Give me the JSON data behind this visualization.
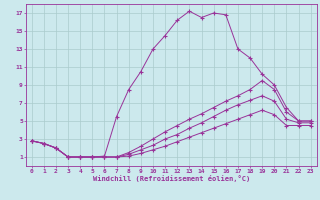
{
  "background_color": "#cce9ed",
  "grid_color": "#aacccc",
  "line_color": "#993399",
  "xlabel": "Windchill (Refroidissement éolien,°C)",
  "xlabel_color": "#993399",
  "tick_color": "#993399",
  "xlim": [
    -0.5,
    23.5
  ],
  "ylim": [
    0,
    18
  ],
  "xticks": [
    0,
    1,
    2,
    3,
    4,
    5,
    6,
    7,
    8,
    9,
    10,
    11,
    12,
    13,
    14,
    15,
    16,
    17,
    18,
    19,
    20,
    21,
    22,
    23
  ],
  "yticks": [
    1,
    3,
    5,
    7,
    9,
    11,
    13,
    15,
    17
  ],
  "line1_x": [
    0,
    1,
    2,
    3,
    4,
    5,
    6,
    7,
    8,
    9,
    10,
    11,
    12,
    13,
    14,
    15,
    16,
    17,
    18,
    19,
    20,
    21,
    22,
    23
  ],
  "line1_y": [
    2.8,
    2.5,
    2.0,
    1.0,
    1.0,
    1.0,
    1.1,
    5.5,
    8.5,
    10.5,
    13.0,
    14.5,
    16.2,
    17.2,
    16.5,
    17.0,
    16.8,
    13.0,
    12.0,
    10.2,
    9.0,
    6.5,
    5.0,
    5.0
  ],
  "line2_x": [
    0,
    1,
    2,
    3,
    4,
    5,
    6,
    7,
    8,
    9,
    10,
    11,
    12,
    13,
    14,
    15,
    16,
    17,
    18,
    19,
    20,
    21,
    22,
    23
  ],
  "line2_y": [
    2.8,
    2.5,
    2.0,
    1.0,
    1.0,
    1.0,
    1.0,
    1.0,
    1.5,
    2.2,
    3.0,
    3.8,
    4.5,
    5.2,
    5.8,
    6.5,
    7.2,
    7.8,
    8.5,
    9.5,
    8.5,
    6.0,
    5.0,
    5.0
  ],
  "line3_x": [
    0,
    1,
    2,
    3,
    4,
    5,
    6,
    7,
    8,
    9,
    10,
    11,
    12,
    13,
    14,
    15,
    16,
    17,
    18,
    19,
    20,
    21,
    22,
    23
  ],
  "line3_y": [
    2.8,
    2.5,
    2.0,
    1.0,
    1.0,
    1.0,
    1.0,
    1.0,
    1.3,
    1.8,
    2.3,
    3.0,
    3.5,
    4.2,
    4.8,
    5.5,
    6.2,
    6.8,
    7.3,
    7.8,
    7.2,
    5.2,
    4.8,
    4.8
  ],
  "line4_x": [
    0,
    1,
    2,
    3,
    4,
    5,
    6,
    7,
    8,
    9,
    10,
    11,
    12,
    13,
    14,
    15,
    16,
    17,
    18,
    19,
    20,
    21,
    22,
    23
  ],
  "line4_y": [
    2.8,
    2.5,
    2.0,
    1.0,
    1.0,
    1.0,
    1.0,
    1.0,
    1.1,
    1.4,
    1.8,
    2.2,
    2.7,
    3.2,
    3.7,
    4.2,
    4.7,
    5.2,
    5.7,
    6.2,
    5.7,
    4.5,
    4.5,
    4.5
  ]
}
